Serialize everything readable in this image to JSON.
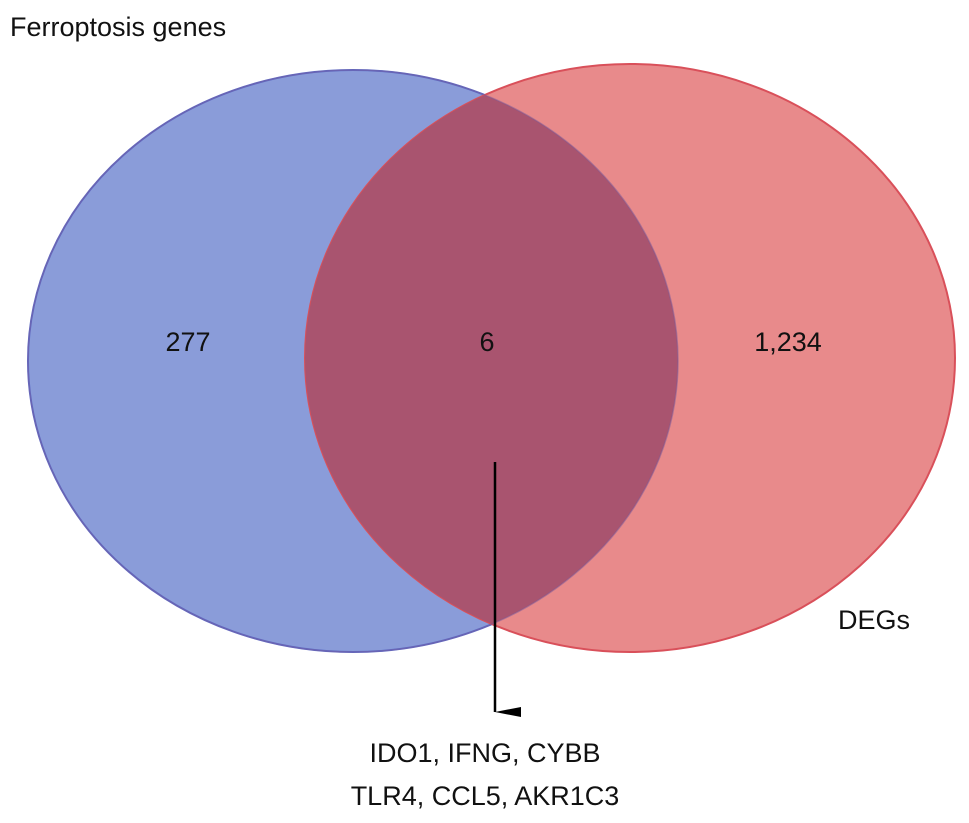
{
  "sets": [
    {
      "label": "Ferroptosis genes"
    },
    {
      "label": "DEGs"
    }
  ],
  "regions": [
    {
      "label": "277"
    },
    {
      "label": "6"
    },
    {
      "label": "1,234"
    }
  ],
  "annotation": {
    "lines": [
      "IDO1, IFNG, CYBB",
      "TLR4, CCL5, AKR1C3"
    ]
  }
}
